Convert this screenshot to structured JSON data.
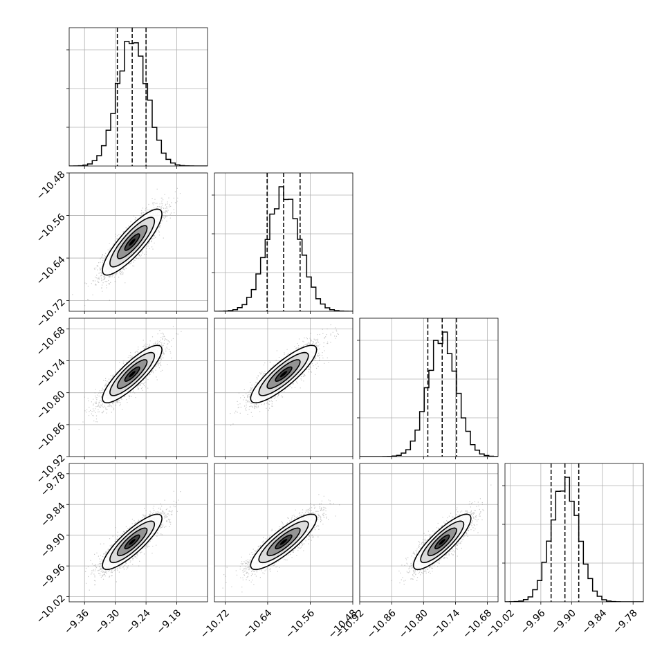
{
  "chart_data": {
    "type": "corner",
    "panel_types": {
      "diagonal": "histogram",
      "off_diagonal": "2d density scatter with contours"
    },
    "grid": true,
    "parameters": [
      {
        "center": -9.267,
        "sigma": 0.029,
        "quantiles": [
          -9.296,
          -9.267,
          -9.24
        ],
        "range": [
          -9.39,
          -9.12
        ],
        "ticks": [
          "−9.36",
          "−9.30",
          "−9.24",
          "−9.18"
        ],
        "tick_values": [
          -9.36,
          -9.3,
          -9.24,
          -9.18
        ]
      },
      {
        "center": -10.61,
        "sigma": 0.031,
        "quantiles": [
          -10.641,
          -10.61,
          -10.579
        ],
        "range": [
          -10.74,
          -10.48
        ],
        "ticks": [
          "−10.72",
          "−10.64",
          "−10.56",
          "−10.48"
        ],
        "tick_values": [
          -10.72,
          -10.64,
          -10.56,
          -10.48
        ]
      },
      {
        "center": -10.765,
        "sigma": 0.027,
        "quantiles": [
          -10.792,
          -10.765,
          -10.738
        ],
        "range": [
          -10.92,
          -10.66
        ],
        "ticks": [
          "−10.92",
          "−10.86",
          "−10.80",
          "−10.74",
          "−10.68"
        ],
        "tick_values": [
          -10.92,
          -10.86,
          -10.8,
          -10.74,
          -10.68
        ]
      },
      {
        "center": -9.913,
        "sigma": 0.027,
        "quantiles": [
          -9.94,
          -9.913,
          -9.886
        ],
        "range": [
          -10.03,
          -9.76
        ],
        "ticks": [
          "−10.02",
          "−9.96",
          "−9.90",
          "−9.84",
          "−9.78"
        ],
        "tick_values": [
          -10.02,
          -9.96,
          -9.9,
          -9.84,
          -9.78
        ]
      }
    ],
    "correlation": 0.85,
    "contour_levels_sigma": [
      0.5,
      1.0,
      1.5,
      2.0
    ]
  }
}
